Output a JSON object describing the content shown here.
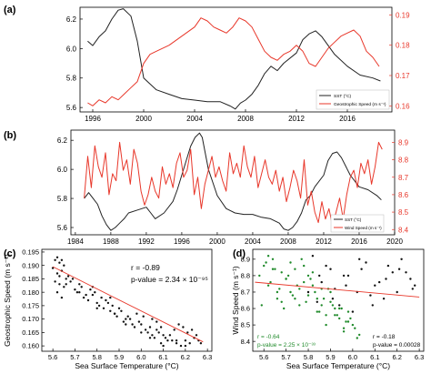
{
  "figure": {
    "panels": {
      "a": {
        "letter": "(a)",
        "legend": [
          "SST (°C)",
          "Geostrophic Speed (m s⁻¹)"
        ]
      },
      "b": {
        "letter": "(b)",
        "legend": [
          "SST (°C)",
          "Wind Speed (m s⁻¹)"
        ]
      },
      "c": {
        "letter": "(c)",
        "stats": [
          "r = -0.89",
          "p-value = 2.34 × 10⁻⁹⁵"
        ]
      },
      "d": {
        "letter": "(d)",
        "stats_green": [
          "r = -0.64",
          "p-value = 2.25 × 10⁻³³"
        ],
        "stats_black": [
          "r = -0.18",
          "p-value = 0.00028"
        ]
      }
    },
    "colors": {
      "sst": "#222222",
      "red": "#e8372a",
      "green": "#1f8a2a",
      "scatter_black": "#111111",
      "fit": "#e8372a"
    }
  },
  "chart_data": [
    {
      "id": "a",
      "type": "line",
      "xlim": [
        1995.0,
        2019.5
      ],
      "xticks": [
        1996,
        2000,
        2004,
        2008,
        2012,
        2016
      ],
      "yleft": {
        "ylim": [
          5.57,
          6.28
        ],
        "ticks": [
          "5.6",
          "5.8",
          "6.0",
          "6.2"
        ]
      },
      "yright": {
        "ylim": [
          0.158,
          0.1925
        ],
        "ticks": [
          "0.16",
          "0.17",
          "0.18",
          "0.19"
        ]
      },
      "series": [
        {
          "name": "SST (°C)",
          "axis": "left",
          "color": "#222222",
          "x": [
            1995.6,
            1996.0,
            1996.5,
            1997.0,
            1997.5,
            1998.0,
            1998.4,
            1999.0,
            1999.5,
            2000.0,
            2001.0,
            2002.0,
            2003.0,
            2004.0,
            2005.0,
            2006.0,
            2006.8,
            2007.2,
            2007.6,
            2008.0,
            2008.5,
            2009.0,
            2009.5,
            2010.0,
            2010.5,
            2011.0,
            2012.0,
            2012.5,
            2013.0,
            2013.5,
            2014.0,
            2015.0,
            2016.0,
            2017.0,
            2018.0,
            2018.6
          ],
          "y": [
            6.05,
            6.02,
            6.08,
            6.12,
            6.2,
            6.26,
            6.27,
            6.22,
            6.05,
            5.8,
            5.72,
            5.69,
            5.66,
            5.65,
            5.64,
            5.64,
            5.61,
            5.59,
            5.63,
            5.65,
            5.69,
            5.75,
            5.83,
            5.88,
            5.85,
            5.9,
            5.97,
            6.06,
            6.1,
            6.12,
            6.08,
            5.96,
            5.88,
            5.82,
            5.8,
            5.78
          ]
        },
        {
          "name": "Geostrophic Speed (m s⁻¹)",
          "axis": "right",
          "color": "#e8372a",
          "x": [
            1995.6,
            1996.0,
            1996.5,
            1997.0,
            1997.5,
            1998.0,
            1998.5,
            1999.0,
            1999.5,
            2000.0,
            2000.5,
            2001.0,
            2002.0,
            2003.0,
            2004.0,
            2004.5,
            2005.0,
            2005.5,
            2006.0,
            2006.5,
            2007.0,
            2007.5,
            2008.0,
            2008.5,
            2009.0,
            2009.5,
            2010.0,
            2010.5,
            2011.0,
            2011.5,
            2012.0,
            2012.5,
            2013.0,
            2013.5,
            2014.0,
            2014.5,
            2015.0,
            2015.5,
            2016.0,
            2016.5,
            2017.0,
            2017.5,
            2018.0,
            2018.5
          ],
          "y": [
            0.161,
            0.16,
            0.162,
            0.161,
            0.163,
            0.162,
            0.164,
            0.166,
            0.168,
            0.174,
            0.177,
            0.178,
            0.18,
            0.183,
            0.186,
            0.189,
            0.188,
            0.186,
            0.185,
            0.184,
            0.186,
            0.189,
            0.188,
            0.186,
            0.182,
            0.178,
            0.176,
            0.175,
            0.177,
            0.178,
            0.18,
            0.178,
            0.174,
            0.173,
            0.176,
            0.179,
            0.181,
            0.183,
            0.184,
            0.185,
            0.183,
            0.178,
            0.176,
            0.173
          ]
        }
      ]
    },
    {
      "id": "b",
      "type": "line",
      "xlim": [
        1983.5,
        2020.0
      ],
      "xticks": [
        1984,
        1988,
        1992,
        1996,
        2000,
        2004,
        2008,
        2012,
        2016,
        2020
      ],
      "yleft": {
        "ylim": [
          5.55,
          6.27
        ],
        "ticks": [
          "5.6",
          "5.8",
          "6.0",
          "6.2"
        ]
      },
      "yright": {
        "ylim": [
          8.37,
          8.97
        ],
        "ticks": [
          "8.4",
          "8.5",
          "8.6",
          "8.7",
          "8.8",
          "8.9"
        ]
      },
      "series": [
        {
          "name": "SST (°C)",
          "axis": "left",
          "color": "#222222",
          "x": [
            1985.0,
            1985.5,
            1986.0,
            1986.5,
            1987.0,
            1987.5,
            1988.0,
            1988.5,
            1989.0,
            1989.5,
            1990.0,
            1991.0,
            1992.0,
            1992.5,
            1993.0,
            1994.0,
            1995.0,
            1995.5,
            1996.0,
            1996.5,
            1997.0,
            1997.5,
            1998.0,
            1998.3,
            1999.0,
            2000.0,
            2001.0,
            2002.0,
            2003.0,
            2004.0,
            2005.0,
            2006.0,
            2007.0,
            2007.5,
            2008.0,
            2008.5,
            2009.0,
            2009.5,
            2010.0,
            2010.5,
            2011.0,
            2012.0,
            2012.5,
            2013.0,
            2013.5,
            2014.0,
            2015.0,
            2016.0,
            2017.0,
            2018.0,
            2018.5
          ],
          "y": [
            5.8,
            5.84,
            5.8,
            5.76,
            5.68,
            5.62,
            5.58,
            5.6,
            5.63,
            5.66,
            5.7,
            5.72,
            5.74,
            5.7,
            5.66,
            5.7,
            5.78,
            5.86,
            5.96,
            6.06,
            6.16,
            6.22,
            6.25,
            6.22,
            6.0,
            5.82,
            5.73,
            5.7,
            5.69,
            5.69,
            5.67,
            5.66,
            5.63,
            5.59,
            5.58,
            5.6,
            5.64,
            5.7,
            5.79,
            5.82,
            5.88,
            5.96,
            6.06,
            6.11,
            6.12,
            6.08,
            5.96,
            5.88,
            5.86,
            5.82,
            5.79
          ]
        },
        {
          "name": "Wind Speed (m s⁻¹)",
          "axis": "right",
          "color": "#e8372a",
          "x": [
            1985.0,
            1985.4,
            1985.8,
            1986.2,
            1986.6,
            1987.0,
            1987.4,
            1987.8,
            1988.2,
            1988.6,
            1989.0,
            1989.4,
            1989.8,
            1990.2,
            1990.6,
            1991.0,
            1991.4,
            1991.8,
            1992.2,
            1992.6,
            1993.0,
            1993.4,
            1993.8,
            1994.2,
            1994.6,
            1995.0,
            1995.4,
            1995.8,
            1996.2,
            1996.6,
            1997.0,
            1997.4,
            1997.8,
            1998.2,
            1998.6,
            1999.0,
            1999.4,
            1999.8,
            2000.2,
            2000.6,
            2001.0,
            2001.4,
            2001.8,
            2002.2,
            2002.6,
            2003.0,
            2003.4,
            2003.8,
            2004.2,
            2004.6,
            2005.0,
            2005.4,
            2005.8,
            2006.2,
            2006.6,
            2007.0,
            2007.4,
            2007.8,
            2008.2,
            2008.6,
            2009.0,
            2009.4,
            2009.8,
            2010.2,
            2010.6,
            2011.0,
            2011.4,
            2011.8,
            2012.2,
            2012.6,
            2013.0,
            2013.4,
            2013.8,
            2014.2,
            2014.6,
            2015.0,
            2015.4,
            2015.8,
            2016.2,
            2016.6,
            2017.0,
            2017.4,
            2017.8,
            2018.2,
            2018.6
          ],
          "y": [
            8.58,
            8.82,
            8.64,
            8.88,
            8.76,
            8.7,
            8.84,
            8.6,
            8.72,
            8.68,
            8.9,
            8.74,
            8.8,
            8.66,
            8.86,
            8.78,
            8.62,
            8.54,
            8.6,
            8.7,
            8.62,
            8.58,
            8.76,
            8.66,
            8.72,
            8.64,
            8.78,
            8.84,
            8.7,
            8.74,
            8.86,
            8.6,
            8.7,
            8.52,
            8.66,
            8.74,
            8.82,
            8.7,
            8.76,
            8.68,
            8.62,
            8.84,
            8.72,
            8.78,
            8.7,
            8.88,
            8.76,
            8.7,
            8.82,
            8.64,
            8.72,
            8.8,
            8.7,
            8.66,
            8.74,
            8.62,
            8.7,
            8.56,
            8.64,
            8.74,
            8.68,
            8.58,
            8.8,
            8.54,
            8.62,
            8.5,
            8.44,
            8.56,
            8.46,
            8.52,
            8.42,
            8.5,
            8.58,
            8.46,
            8.6,
            8.7,
            8.74,
            8.64,
            8.78,
            8.72,
            8.8,
            8.66,
            8.76,
            8.9,
            8.86
          ]
        }
      ]
    },
    {
      "id": "c",
      "type": "scatter",
      "xlabel": "Sea Surface Temperature (°C)",
      "ylabel": "Geostrophic Speed (m s⁻¹)",
      "xlim": [
        5.55,
        6.32
      ],
      "ylim": [
        0.158,
        0.196
      ],
      "xticks": [
        "5.6",
        "5.7",
        "5.8",
        "5.9",
        "6.0",
        "6.1",
        "6.2",
        "6.3"
      ],
      "yticks": [
        "0.160",
        "0.165",
        "0.170",
        "0.175",
        "0.180",
        "0.185",
        "0.190",
        "0.195"
      ],
      "fit": {
        "x": [
          5.6,
          6.28
        ],
        "y": [
          0.1895,
          0.1615
        ]
      },
      "series": [
        {
          "color": "#111111",
          "x": [
            5.61,
            5.62,
            5.63,
            5.64,
            5.65,
            5.62,
            5.63,
            5.64,
            5.6,
            5.66,
            5.61,
            5.63,
            5.65,
            5.68,
            5.7,
            5.72,
            5.67,
            5.69,
            5.71,
            5.73,
            5.75,
            5.77,
            5.79,
            5.74,
            5.76,
            5.78,
            5.8,
            5.82,
            5.84,
            5.81,
            5.83,
            5.85,
            5.87,
            5.86,
            5.88,
            5.9,
            5.89,
            5.91,
            5.93,
            5.92,
            5.94,
            5.96,
            5.95,
            5.97,
            5.99,
            6.0,
            6.02,
            6.04,
            6.03,
            6.05,
            6.07,
            6.06,
            6.08,
            6.1,
            6.12,
            6.09,
            6.11,
            6.14,
            6.16,
            6.18,
            6.2,
            6.22,
            6.24,
            6.26,
            6.27,
            6.25,
            6.23,
            6.21,
            6.19,
            6.17,
            6.15,
            6.13,
            6.05,
            6.07,
            6.09,
            5.98,
            6.01,
            5.86,
            5.78,
            5.72,
            5.66,
            5.62,
            5.64,
            5.8,
            5.88,
            5.93,
            6.0,
            6.04,
            6.1,
            6.16,
            6.2,
            6.24
          ],
          "y": [
            0.192,
            0.193,
            0.191,
            0.192,
            0.19,
            0.187,
            0.186,
            0.188,
            0.189,
            0.185,
            0.184,
            0.183,
            0.182,
            0.184,
            0.181,
            0.183,
            0.186,
            0.185,
            0.18,
            0.182,
            0.179,
            0.181,
            0.18,
            0.178,
            0.177,
            0.179,
            0.176,
            0.178,
            0.177,
            0.175,
            0.174,
            0.176,
            0.175,
            0.173,
            0.172,
            0.174,
            0.171,
            0.173,
            0.17,
            0.169,
            0.171,
            0.168,
            0.17,
            0.167,
            0.169,
            0.168,
            0.166,
            0.167,
            0.165,
            0.164,
            0.166,
            0.163,
            0.165,
            0.164,
            0.162,
            0.161,
            0.163,
            0.162,
            0.161,
            0.16,
            0.162,
            0.161,
            0.163,
            0.162,
            0.161,
            0.164,
            0.166,
            0.165,
            0.167,
            0.168,
            0.166,
            0.164,
            0.17,
            0.169,
            0.167,
            0.172,
            0.171,
            0.178,
            0.182,
            0.18,
            0.183,
            0.18,
            0.178,
            0.174,
            0.172,
            0.168,
            0.165,
            0.163,
            0.16,
            0.162,
            0.16,
            0.163
          ]
        }
      ]
    },
    {
      "id": "d",
      "type": "scatter",
      "xlabel": "Sea Surface Temperature (°C)",
      "ylabel": "Wind Speed (m s⁻¹)",
      "xlim": [
        5.55,
        6.32
      ],
      "ylim": [
        8.34,
        8.96
      ],
      "xticks": [
        "5.6",
        "5.7",
        "5.8",
        "5.9",
        "6.0",
        "6.1",
        "6.2",
        "6.3"
      ],
      "yticks": [
        "8.4",
        "8.5",
        "8.6",
        "8.7",
        "8.8",
        "8.9"
      ],
      "fit": {
        "x": [
          5.56,
          6.3
        ],
        "y": [
          8.76,
          8.67
        ]
      },
      "series": [
        {
          "color": "#1f8a2a",
          "x": [
            5.58,
            5.6,
            5.62,
            5.64,
            5.66,
            5.68,
            5.7,
            5.72,
            5.59,
            5.61,
            5.63,
            5.65,
            5.67,
            5.69,
            5.71,
            5.73,
            5.75,
            5.77,
            5.79,
            5.81,
            5.83,
            5.85,
            5.87,
            5.89,
            5.91,
            5.93,
            5.95,
            5.97,
            5.99,
            6.01,
            6.03,
            5.74,
            5.76,
            5.78,
            5.8,
            5.82,
            5.84,
            5.86,
            5.88,
            5.9,
            5.92,
            5.94,
            5.96,
            5.98,
            6.0,
            5.62,
            5.66,
            5.7,
            5.74,
            5.78,
            5.82,
            5.86,
            5.9,
            5.94,
            5.98,
            6.02,
            5.64,
            5.68,
            5.72,
            5.76,
            5.8,
            5.84,
            5.88,
            5.92,
            5.96
          ],
          "y": [
            8.8,
            8.86,
            8.74,
            8.9,
            8.66,
            8.82,
            8.78,
            8.7,
            8.62,
            8.88,
            8.76,
            8.84,
            8.72,
            8.6,
            8.8,
            8.68,
            8.74,
            8.9,
            8.64,
            8.78,
            8.7,
            8.58,
            8.66,
            8.72,
            8.62,
            8.56,
            8.6,
            8.52,
            8.54,
            8.48,
            8.44,
            8.84,
            8.62,
            8.76,
            8.68,
            8.82,
            8.58,
            8.72,
            8.5,
            8.64,
            8.56,
            8.6,
            8.46,
            8.52,
            8.5,
            8.92,
            8.7,
            8.78,
            8.66,
            8.86,
            8.74,
            8.62,
            8.7,
            8.54,
            8.58,
            8.42,
            8.84,
            8.64,
            8.88,
            8.72,
            8.8,
            8.66,
            8.56,
            8.6,
            8.48
          ]
        },
        {
          "color": "#111111",
          "x": [
            5.82,
            5.86,
            5.9,
            5.94,
            5.98,
            6.02,
            6.06,
            6.1,
            6.14,
            6.18,
            6.22,
            6.26,
            5.84,
            5.88,
            5.92,
            5.96,
            6.0,
            6.04,
            6.08,
            6.12,
            6.16,
            6.2,
            6.24,
            6.28,
            5.8,
            5.85,
            5.91,
            5.97,
            6.03,
            6.09,
            6.15,
            6.21,
            6.27
          ],
          "y": [
            8.92,
            8.76,
            8.84,
            8.62,
            8.8,
            8.7,
            8.88,
            8.74,
            8.66,
            8.82,
            8.9,
            8.78,
            8.64,
            8.86,
            8.72,
            8.8,
            8.58,
            8.84,
            8.68,
            8.76,
            8.86,
            8.7,
            8.82,
            8.74,
            8.7,
            8.8,
            8.66,
            8.74,
            8.9,
            8.62,
            8.78,
            8.84,
            8.72
          ]
        }
      ]
    }
  ]
}
